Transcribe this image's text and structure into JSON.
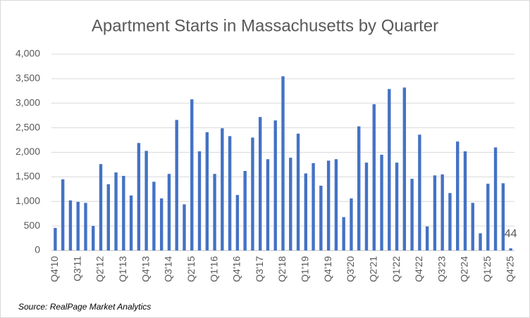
{
  "chart_data": {
    "type": "bar",
    "title": "Apartment Starts in Massachusetts by Quarter",
    "source": "Source: RealPage Market Analytics",
    "categories": [
      "Q4'10",
      null,
      null,
      "Q3'11",
      null,
      null,
      "Q2'12",
      null,
      null,
      "Q1'13",
      null,
      null,
      "Q4'13",
      null,
      null,
      "Q3'14",
      null,
      null,
      "Q2'15",
      null,
      null,
      "Q1'16",
      null,
      null,
      "Q4'16",
      null,
      null,
      "Q3'17",
      null,
      null,
      "Q2'18",
      null,
      null,
      "Q1'19",
      null,
      null,
      "Q4'19",
      null,
      null,
      "Q3'20",
      null,
      null,
      "Q2'21",
      null,
      null,
      "Q1'22",
      null,
      null,
      "Q4'22",
      null,
      null,
      "Q3'23",
      null,
      null,
      "Q2'24",
      null,
      null,
      "Q1'25",
      null,
      null,
      "Q4'25"
    ],
    "values": [
      460,
      1450,
      1020,
      990,
      970,
      500,
      1760,
      1350,
      1590,
      1520,
      1120,
      2190,
      2030,
      1400,
      1060,
      1560,
      2660,
      940,
      3080,
      2020,
      2410,
      1560,
      2490,
      2330,
      1130,
      1620,
      2300,
      2720,
      1860,
      2650,
      3550,
      1890,
      2380,
      1570,
      1780,
      1320,
      1830,
      1860,
      680,
      1060,
      2530,
      1790,
      2980,
      1950,
      3290,
      1790,
      3320,
      1460,
      2360,
      490,
      1530,
      1550,
      1170,
      2220,
      2020,
      970,
      350,
      1360,
      2100,
      1370,
      44
    ],
    "color": "#4472c4",
    "ylim": [
      0,
      4000
    ],
    "yticks": [
      0,
      {
        "value": 500,
        "label": "500"
      },
      {
        "value": 1000,
        "label": "1,000"
      },
      {
        "value": 1500,
        "label": "1,500"
      },
      {
        "value": 2000,
        "label": "2,000"
      },
      {
        "value": 2500,
        "label": "2,500"
      },
      {
        "value": 3000,
        "label": "3,000"
      },
      {
        "value": 3500,
        "label": "3,500"
      },
      {
        "value": 4000,
        "label": "4,000"
      }
    ],
    "grid": true,
    "labeled_points": [
      60
    ]
  }
}
